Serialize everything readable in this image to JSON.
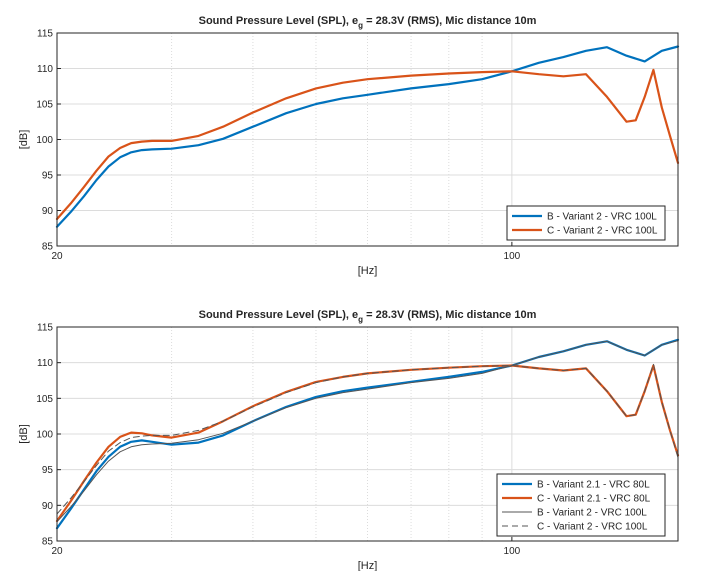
{
  "chart_data": [
    {
      "type": "line",
      "title_main": "Sound Pressure Level (SPL), e",
      "title_sub": "g",
      "title_rest": " = 28.3V (RMS), Mic distance 10m",
      "xlabel": "[Hz]",
      "ylabel": "[dB]",
      "xscale": "log",
      "xlim": [
        20,
        180
      ],
      "ylim": [
        85,
        115
      ],
      "xticklabels": [
        "20",
        "100"
      ],
      "xtick_values": [
        20,
        100
      ],
      "yticks": [
        85,
        90,
        95,
        100,
        105,
        110,
        115
      ],
      "grid": true,
      "legend_location": "bottom-right",
      "series": [
        {
          "name": "B - Variant 2 - VRC 100L",
          "color": "#0072BD",
          "style": "solid-thick",
          "x": [
            20,
            21,
            22,
            23,
            24,
            25,
            26,
            27,
            28,
            30,
            33,
            36,
            40,
            45,
            50,
            55,
            60,
            70,
            80,
            90,
            100,
            110,
            120,
            130,
            140,
            150,
            160,
            170,
            180
          ],
          "y": [
            87.7,
            89.8,
            92.0,
            94.3,
            96.2,
            97.5,
            98.2,
            98.5,
            98.6,
            98.7,
            99.2,
            100.1,
            101.8,
            103.7,
            105.0,
            105.8,
            106.3,
            107.2,
            107.8,
            108.5,
            109.6,
            110.8,
            111.6,
            112.5,
            113.0,
            111.8,
            111.0,
            112.5,
            113.1
          ]
        },
        {
          "name": "C - Variant 2 - VRC 100L",
          "color": "#D95319",
          "style": "solid-thick",
          "x": [
            20,
            21,
            22,
            23,
            24,
            25,
            26,
            27,
            28,
            30,
            33,
            36,
            40,
            45,
            50,
            55,
            60,
            70,
            80,
            90,
            100,
            110,
            120,
            130,
            140,
            150,
            155,
            160,
            165,
            170,
            175,
            180
          ],
          "y": [
            88.8,
            91.0,
            93.3,
            95.6,
            97.6,
            98.8,
            99.5,
            99.7,
            99.8,
            99.8,
            100.5,
            101.8,
            103.8,
            105.8,
            107.2,
            108.0,
            108.5,
            109.0,
            109.3,
            109.5,
            109.6,
            109.2,
            108.9,
            109.2,
            106.0,
            102.5,
            102.7,
            106.0,
            109.8,
            104.5,
            100.5,
            96.7
          ]
        }
      ],
      "legend": [
        {
          "label": "B - Variant 2 - VRC 100L",
          "color": "#0072BD",
          "style": "solid-thick"
        },
        {
          "label": "C - Variant 2 - VRC 100L",
          "color": "#D95319",
          "style": "solid-thick"
        }
      ]
    },
    {
      "type": "line",
      "title_main": "Sound Pressure Level (SPL), e",
      "title_sub": "g",
      "title_rest": " = 28.3V (RMS), Mic distance 10m",
      "xlabel": "[Hz]",
      "ylabel": "[dB]",
      "xscale": "log",
      "xlim": [
        20,
        180
      ],
      "ylim": [
        85,
        115
      ],
      "xticklabels": [
        "20",
        "100"
      ],
      "xtick_values": [
        20,
        100
      ],
      "yticks": [
        85,
        90,
        95,
        100,
        105,
        110,
        115
      ],
      "grid": true,
      "legend_location": "bottom-right",
      "series": [
        {
          "name": "B - Variant 2.1 - VRC 80L",
          "color": "#0072BD",
          "style": "solid-thick",
          "x": [
            20,
            21,
            22,
            23,
            24,
            25,
            26,
            27,
            28,
            30,
            33,
            36,
            40,
            45,
            50,
            55,
            60,
            70,
            80,
            90,
            100,
            110,
            120,
            130,
            140,
            150,
            160,
            170,
            180
          ],
          "y": [
            86.8,
            89.5,
            92.2,
            94.8,
            96.8,
            98.2,
            98.9,
            99.1,
            98.9,
            98.5,
            98.8,
            99.8,
            101.8,
            103.8,
            105.2,
            106.0,
            106.5,
            107.3,
            108.0,
            108.7,
            109.6,
            110.8,
            111.6,
            112.5,
            113.0,
            111.8,
            111.0,
            112.5,
            113.2
          ]
        },
        {
          "name": "C - Variant 2.1 - VRC 80L",
          "color": "#D95319",
          "style": "solid-thick",
          "x": [
            20,
            21,
            22,
            23,
            24,
            25,
            26,
            27,
            28,
            30,
            33,
            36,
            40,
            45,
            50,
            55,
            60,
            70,
            80,
            90,
            100,
            110,
            120,
            130,
            140,
            150,
            155,
            160,
            165,
            170,
            175,
            180
          ],
          "y": [
            87.8,
            90.6,
            93.4,
            96.0,
            98.2,
            99.6,
            100.2,
            100.1,
            99.8,
            99.5,
            100.2,
            101.8,
            103.9,
            105.9,
            107.3,
            108.0,
            108.5,
            109.0,
            109.3,
            109.5,
            109.6,
            109.2,
            108.9,
            109.2,
            106.0,
            102.5,
            102.7,
            106.0,
            109.6,
            104.5,
            100.5,
            97.0
          ]
        },
        {
          "name": "B - Variant 2 - VRC 100L",
          "color": "#555555",
          "style": "solid-thin",
          "x": [
            20,
            21,
            22,
            23,
            24,
            25,
            26,
            27,
            28,
            30,
            33,
            36,
            40,
            45,
            50,
            55,
            60,
            70,
            80,
            90,
            100,
            110,
            120,
            130,
            140,
            150,
            160,
            170,
            180
          ],
          "y": [
            87.7,
            89.8,
            92.0,
            94.3,
            96.2,
            97.5,
            98.2,
            98.5,
            98.6,
            98.7,
            99.2,
            100.1,
            101.8,
            103.7,
            105.0,
            105.8,
            106.3,
            107.2,
            107.8,
            108.5,
            109.6,
            110.8,
            111.6,
            112.5,
            113.0,
            111.8,
            111.0,
            112.5,
            113.1
          ]
        },
        {
          "name": "C - Variant 2 - VRC 100L",
          "color": "#555555",
          "style": "dashed",
          "x": [
            20,
            21,
            22,
            23,
            24,
            25,
            26,
            27,
            28,
            30,
            33,
            36,
            40,
            45,
            50,
            55,
            60,
            70,
            80,
            90,
            100,
            110,
            120,
            130,
            140,
            150,
            155,
            160,
            165,
            170,
            175,
            180
          ],
          "y": [
            88.8,
            91.0,
            93.3,
            95.6,
            97.6,
            98.8,
            99.5,
            99.7,
            99.8,
            99.8,
            100.5,
            101.8,
            103.8,
            105.8,
            107.2,
            108.0,
            108.5,
            109.0,
            109.3,
            109.5,
            109.6,
            109.2,
            108.9,
            109.2,
            106.0,
            102.5,
            102.7,
            106.0,
            109.8,
            104.5,
            100.5,
            96.7
          ]
        }
      ],
      "legend": [
        {
          "label": "B - Variant 2.1 - VRC 80L",
          "color": "#0072BD",
          "style": "solid-thick"
        },
        {
          "label": "C - Variant 2.1 - VRC 80L",
          "color": "#D95319",
          "style": "solid-thick"
        },
        {
          "label": "B - Variant 2 - VRC 100L",
          "color": "#555555",
          "style": "solid-thin"
        },
        {
          "label": "C - Variant 2 - VRC 100L",
          "color": "#555555",
          "style": "dashed"
        }
      ]
    }
  ]
}
